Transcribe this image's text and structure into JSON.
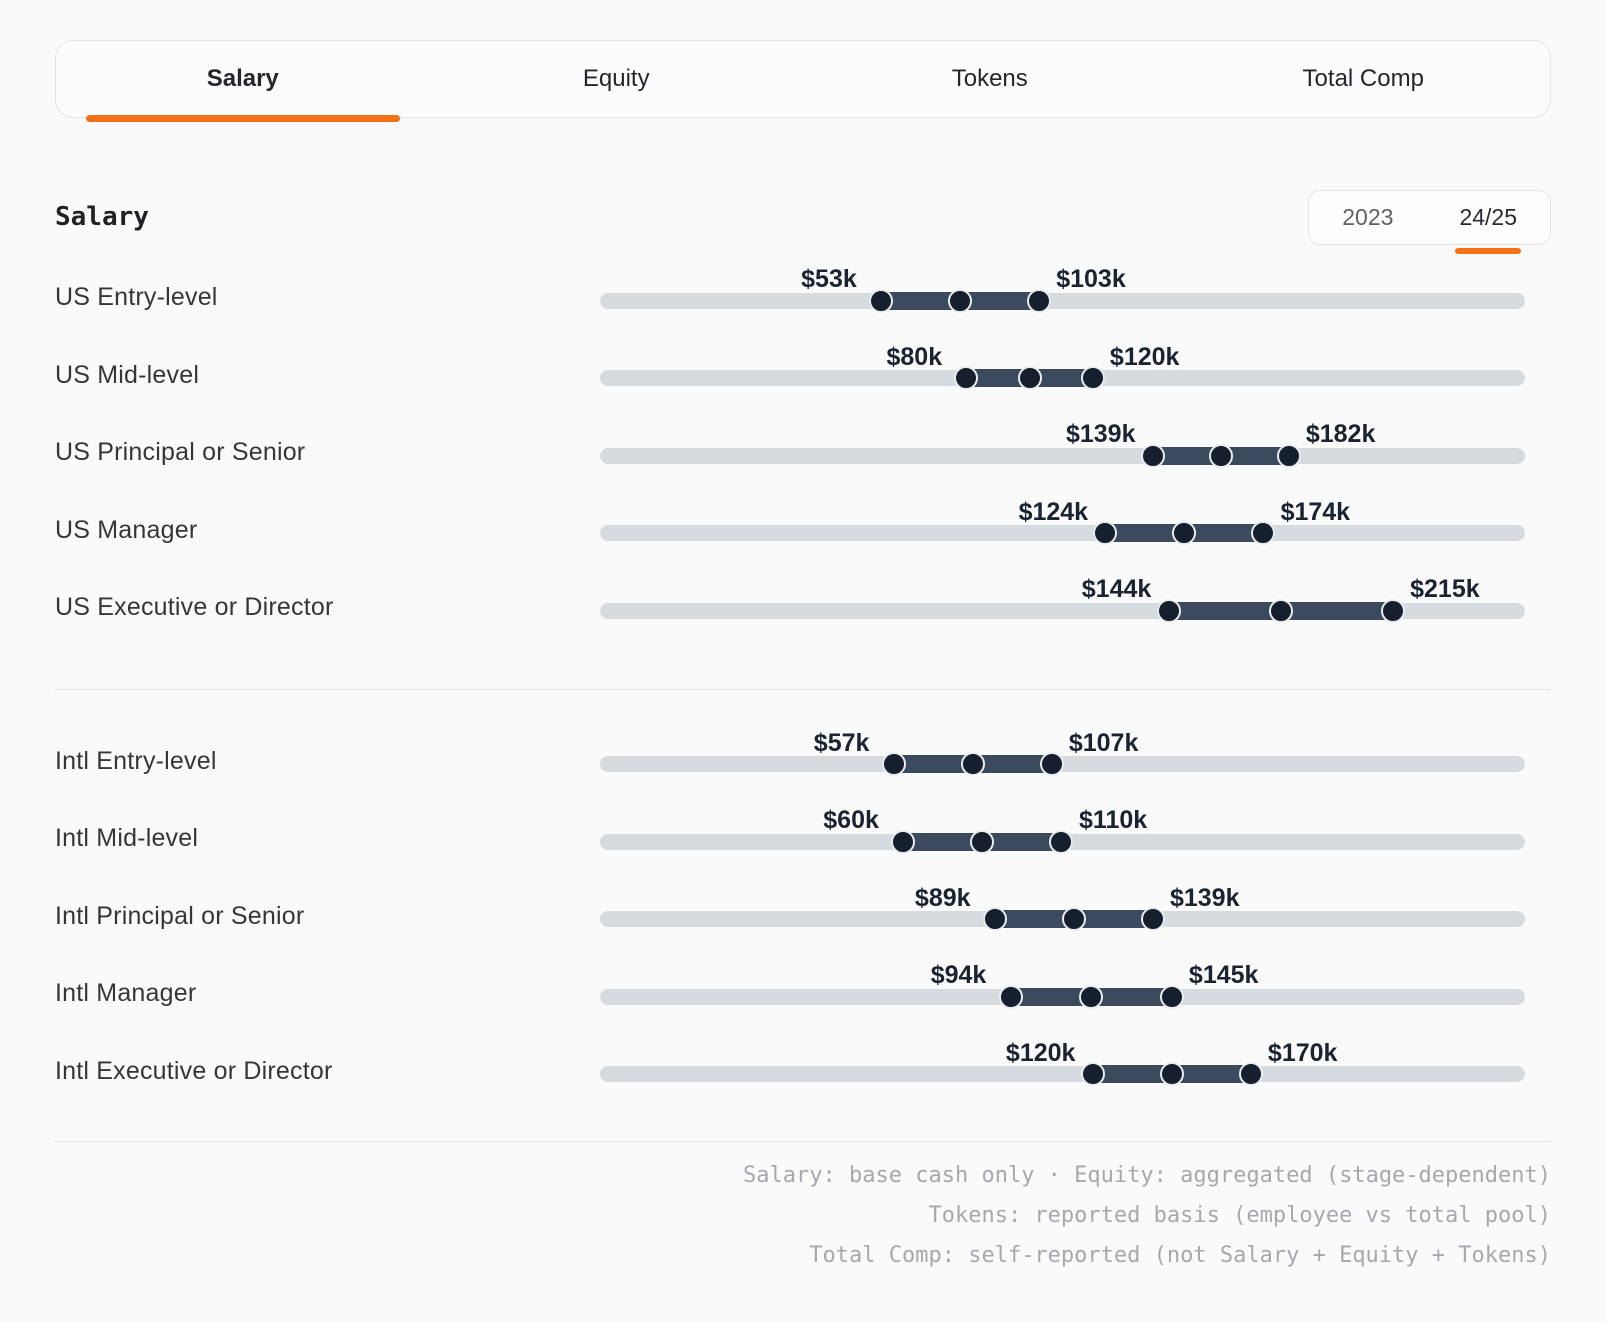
{
  "tabs": {
    "items": [
      {
        "label": "Salary",
        "active": true
      },
      {
        "label": "Equity",
        "active": false
      },
      {
        "label": "Tokens",
        "active": false
      },
      {
        "label": "Total Comp",
        "active": false
      }
    ]
  },
  "header": {
    "title": "Salary",
    "year_toggle": {
      "options": [
        "2023",
        "24/25"
      ],
      "selected": "24/25"
    }
  },
  "sections": [
    {
      "name": "US",
      "rows": [
        {
          "label": "US Entry-level",
          "min_k": 53,
          "max_k": 103,
          "min_label": "$53k",
          "max_label": "$103k"
        },
        {
          "label": "US Mid-level",
          "min_k": 80,
          "max_k": 120,
          "min_label": "$80k",
          "max_label": "$120k"
        },
        {
          "label": "US Principal or Senior",
          "min_k": 139,
          "max_k": 182,
          "min_label": "$139k",
          "max_label": "$182k"
        },
        {
          "label": "US Manager",
          "min_k": 124,
          "max_k": 174,
          "min_label": "$124k",
          "max_label": "$174k"
        },
        {
          "label": "US Executive or Director",
          "min_k": 144,
          "max_k": 215,
          "min_label": "$144k",
          "max_label": "$215k"
        }
      ]
    },
    {
      "name": "Intl",
      "rows": [
        {
          "label": "Intl Entry-level",
          "min_k": 57,
          "max_k": 107,
          "min_label": "$57k",
          "max_label": "$107k"
        },
        {
          "label": "Intl Mid-level",
          "min_k": 60,
          "max_k": 110,
          "min_label": "$60k",
          "max_label": "$110k"
        },
        {
          "label": "Intl Principal or Senior",
          "min_k": 89,
          "max_k": 139,
          "min_label": "$89k",
          "max_label": "$139k"
        },
        {
          "label": "Intl Manager",
          "min_k": 94,
          "max_k": 145,
          "min_label": "$94k",
          "max_label": "$145k"
        },
        {
          "label": "Intl Executive or Director",
          "min_k": 120,
          "max_k": 170,
          "min_label": "$120k",
          "max_label": "$170k"
        }
      ]
    }
  ],
  "footnotes": [
    "Salary: base cash only · Equity: aggregated (stage-dependent)",
    "Tokens: reported basis (employee vs total pool)",
    "Total Comp: self-reported (not Salary + Equity + Tokens)"
  ],
  "colors": {
    "accent_orange": "#f4711a",
    "range_bar": "#3b4b5d",
    "handle": "#161f2d",
    "track": "#d6dbe0",
    "value_text": "#1a2330",
    "footnote_text": "#a4a9b0"
  },
  "chart_data": {
    "type": "bar",
    "variant": "horizontal-range-slider",
    "title": "Salary",
    "unit": "USD thousands per year",
    "selected_tab": "Salary",
    "selected_year": "24/25",
    "legend_position": "none",
    "grid": false,
    "implied_axis_k": [
      -36,
      257
    ],
    "groups": [
      {
        "name": "US",
        "categories": [
          "US Entry-level",
          "US Mid-level",
          "US Principal or Senior",
          "US Manager",
          "US Executive or Director"
        ],
        "ranges_k": [
          [
            53,
            103
          ],
          [
            80,
            120
          ],
          [
            139,
            182
          ],
          [
            124,
            174
          ],
          [
            144,
            215
          ]
        ]
      },
      {
        "name": "Intl",
        "categories": [
          "Intl Entry-level",
          "Intl Mid-level",
          "Intl Principal or Senior",
          "Intl Manager",
          "Intl Executive or Director"
        ],
        "ranges_k": [
          [
            57,
            107
          ],
          [
            60,
            110
          ],
          [
            89,
            139
          ],
          [
            94,
            145
          ],
          [
            120,
            170
          ]
        ]
      }
    ]
  }
}
